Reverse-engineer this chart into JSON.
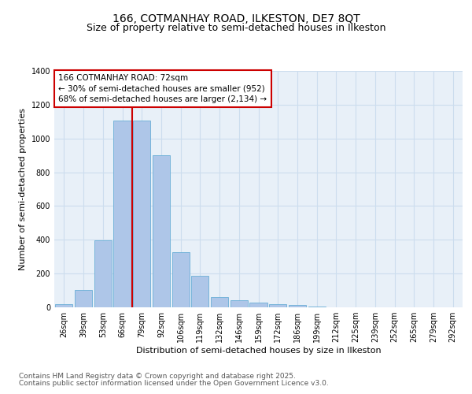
{
  "title": "166, COTMANHAY ROAD, ILKESTON, DE7 8QT",
  "subtitle": "Size of property relative to semi-detached houses in Ilkeston",
  "xlabel": "Distribution of semi-detached houses by size in Ilkeston",
  "ylabel": "Number of semi-detached properties",
  "categories": [
    "26sqm",
    "39sqm",
    "53sqm",
    "66sqm",
    "79sqm",
    "92sqm",
    "106sqm",
    "119sqm",
    "132sqm",
    "146sqm",
    "159sqm",
    "172sqm",
    "186sqm",
    "199sqm",
    "212sqm",
    "225sqm",
    "239sqm",
    "252sqm",
    "265sqm",
    "279sqm",
    "292sqm"
  ],
  "values": [
    20,
    105,
    395,
    1105,
    1105,
    900,
    325,
    185,
    60,
    40,
    30,
    20,
    12,
    5,
    2,
    1,
    0,
    0,
    0,
    0,
    0
  ],
  "bar_color": "#aec6e8",
  "bar_edge_color": "#6aaed6",
  "grid_color": "#ccddee",
  "background_color": "#e8f0f8",
  "annotation_text": "166 COTMANHAY ROAD: 72sqm\n← 30% of semi-detached houses are smaller (952)\n68% of semi-detached houses are larger (2,134) →",
  "annotation_box_facecolor": "#ffffff",
  "annotation_border_color": "#cc0000",
  "red_line_color": "#cc0000",
  "ylim": [
    0,
    1400
  ],
  "yticks": [
    0,
    200,
    400,
    600,
    800,
    1000,
    1200,
    1400
  ],
  "footer_line1": "Contains HM Land Registry data © Crown copyright and database right 2025.",
  "footer_line2": "Contains public sector information licensed under the Open Government Licence v3.0.",
  "title_fontsize": 10,
  "subtitle_fontsize": 9,
  "axis_label_fontsize": 8,
  "tick_fontsize": 7,
  "annotation_fontsize": 7.5,
  "footer_fontsize": 6.5,
  "red_line_index": 3.5
}
